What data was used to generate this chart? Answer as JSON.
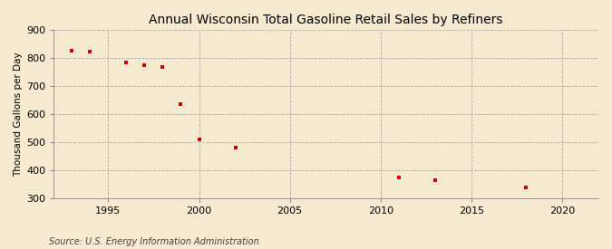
{
  "title": "Annual Wisconsin Total Gasoline Retail Sales by Refiners",
  "ylabel": "Thousand Gallons per Day",
  "source": "Source: U.S. Energy Information Administration",
  "background_color": "#f5ead0",
  "plot_bg_color": "#f5ead0",
  "marker_color": "#cc0000",
  "xlim": [
    1992,
    2022
  ],
  "ylim": [
    300,
    900
  ],
  "xticks": [
    1995,
    2000,
    2005,
    2010,
    2015,
    2020
  ],
  "yticks": [
    300,
    400,
    500,
    600,
    700,
    800,
    900
  ],
  "data_x": [
    1993,
    1994,
    1996,
    1997,
    1998,
    1999,
    2000,
    2002,
    2011,
    2013,
    2018
  ],
  "data_y": [
    825,
    823,
    785,
    774,
    769,
    636,
    511,
    480,
    375,
    364,
    340
  ],
  "title_fontsize": 10,
  "ylabel_fontsize": 7.5,
  "tick_fontsize": 8,
  "source_fontsize": 7
}
